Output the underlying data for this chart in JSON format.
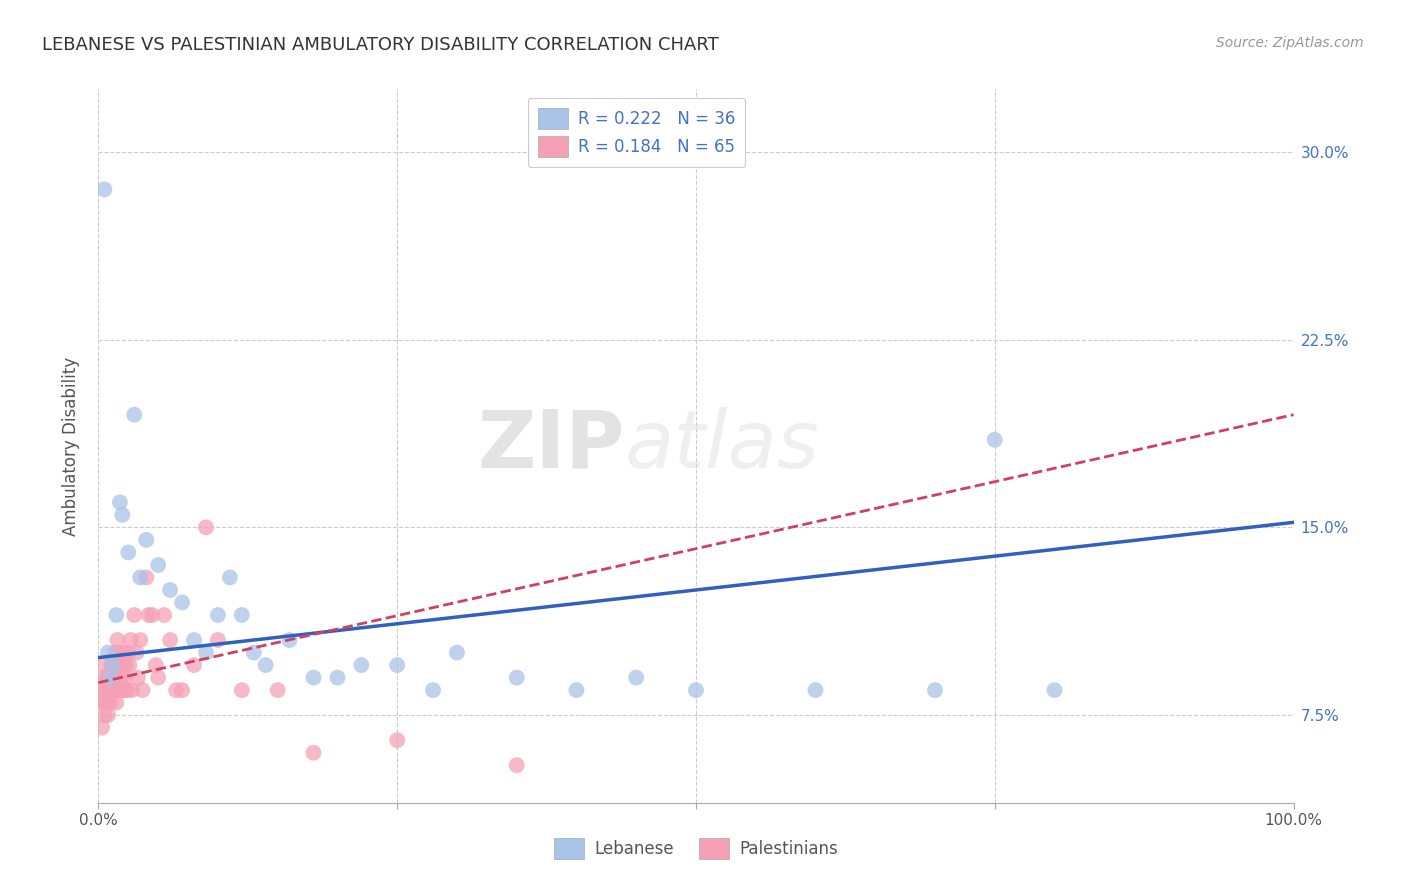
{
  "title": "LEBANESE VS PALESTINIAN AMBULATORY DISABILITY CORRELATION CHART",
  "source": "Source: ZipAtlas.com",
  "ylabel": "Ambulatory Disability",
  "legend_label1": "Lebanese",
  "legend_label2": "Palestinians",
  "R1": 0.222,
  "N1": 36,
  "R2": 0.184,
  "N2": 65,
  "color1": "#A8C4E8",
  "color2": "#F5A0B5",
  "line_color1": "#3060C0",
  "line_color2": "#D04060",
  "xlim": [
    0.0,
    1.0
  ],
  "ylim": [
    0.04,
    0.325
  ],
  "yticks": [
    0.075,
    0.15,
    0.225,
    0.3
  ],
  "ytick_labels": [
    "7.5%",
    "15.0%",
    "22.5%",
    "30.0%"
  ],
  "background_color": "#FFFFFF",
  "grid_color": "#CCCCCC",
  "watermark_zip": "ZIP",
  "watermark_atlas": "atlas",
  "lebanese_x": [
    0.005,
    0.008,
    0.01,
    0.012,
    0.015,
    0.018,
    0.02,
    0.025,
    0.03,
    0.035,
    0.04,
    0.05,
    0.06,
    0.07,
    0.08,
    0.09,
    0.1,
    0.11,
    0.12,
    0.13,
    0.14,
    0.16,
    0.18,
    0.2,
    0.22,
    0.25,
    0.28,
    0.3,
    0.35,
    0.4,
    0.45,
    0.5,
    0.6,
    0.7,
    0.75,
    0.8
  ],
  "lebanese_y": [
    0.285,
    0.1,
    0.09,
    0.095,
    0.115,
    0.16,
    0.155,
    0.14,
    0.195,
    0.13,
    0.145,
    0.135,
    0.125,
    0.12,
    0.105,
    0.1,
    0.115,
    0.13,
    0.115,
    0.1,
    0.095,
    0.105,
    0.09,
    0.09,
    0.095,
    0.095,
    0.085,
    0.1,
    0.09,
    0.085,
    0.09,
    0.085,
    0.085,
    0.085,
    0.185,
    0.085
  ],
  "palestinian_x": [
    0.002,
    0.003,
    0.004,
    0.005,
    0.005,
    0.005,
    0.006,
    0.006,
    0.007,
    0.007,
    0.008,
    0.008,
    0.009,
    0.009,
    0.01,
    0.01,
    0.01,
    0.011,
    0.012,
    0.012,
    0.013,
    0.013,
    0.014,
    0.014,
    0.015,
    0.015,
    0.016,
    0.016,
    0.017,
    0.018,
    0.018,
    0.019,
    0.02,
    0.02,
    0.021,
    0.022,
    0.022,
    0.023,
    0.024,
    0.025,
    0.026,
    0.027,
    0.028,
    0.03,
    0.032,
    0.033,
    0.035,
    0.037,
    0.04,
    0.042,
    0.045,
    0.048,
    0.05,
    0.055,
    0.06,
    0.065,
    0.07,
    0.08,
    0.09,
    0.1,
    0.12,
    0.15,
    0.18,
    0.25,
    0.35
  ],
  "palestinian_y": [
    0.085,
    0.07,
    0.08,
    0.075,
    0.095,
    0.09,
    0.08,
    0.085,
    0.09,
    0.08,
    0.085,
    0.075,
    0.09,
    0.085,
    0.08,
    0.085,
    0.09,
    0.095,
    0.085,
    0.09,
    0.095,
    0.085,
    0.1,
    0.09,
    0.095,
    0.08,
    0.105,
    0.085,
    0.1,
    0.095,
    0.085,
    0.09,
    0.095,
    0.085,
    0.1,
    0.09,
    0.085,
    0.095,
    0.085,
    0.1,
    0.095,
    0.105,
    0.085,
    0.115,
    0.1,
    0.09,
    0.105,
    0.085,
    0.13,
    0.115,
    0.115,
    0.095,
    0.09,
    0.115,
    0.105,
    0.085,
    0.085,
    0.095,
    0.15,
    0.105,
    0.085,
    0.085,
    0.06,
    0.065,
    0.055
  ],
  "leb_trend_x0": 0.0,
  "leb_trend_y0": 0.098,
  "leb_trend_x1": 1.0,
  "leb_trend_y1": 0.152,
  "pal_trend_x0": 0.0,
  "pal_trend_y0": 0.088,
  "pal_trend_x1": 1.0,
  "pal_trend_y1": 0.195
}
